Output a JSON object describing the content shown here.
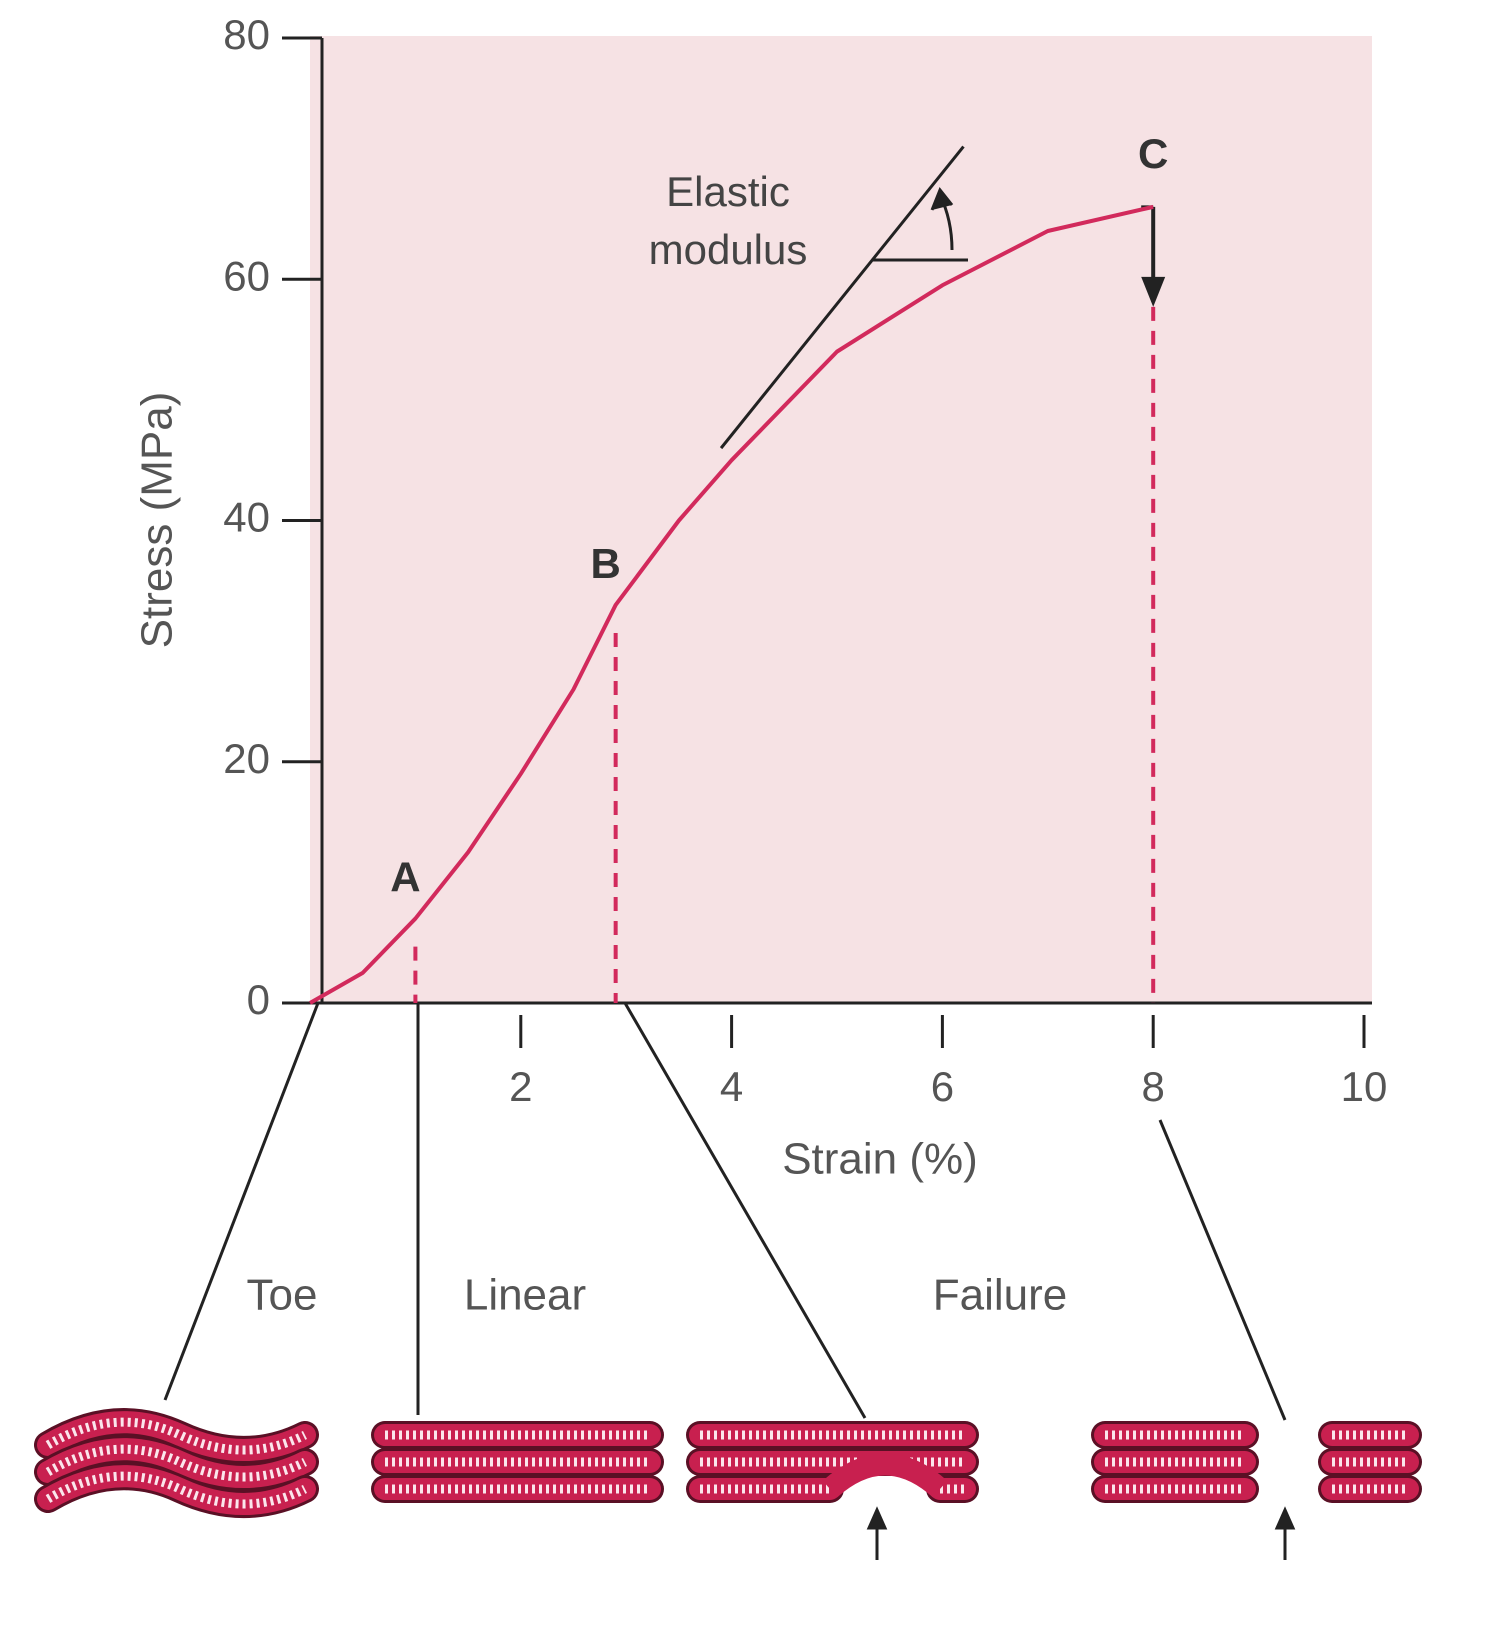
{
  "chart_data": {
    "type": "line",
    "xlabel": "Strain (%)",
    "ylabel": "Stress (MPa)",
    "xlim": [
      0,
      10
    ],
    "ylim": [
      0,
      80
    ],
    "xticks": [
      2,
      4,
      6,
      8,
      10
    ],
    "yticks": [
      0,
      20,
      40,
      60,
      80
    ],
    "background": "#f6e2e4",
    "series": [
      {
        "color": "#d22a5c",
        "x": [
          0,
          0.5,
          1,
          1.5,
          2,
          2.5,
          2.9,
          3.5,
          4,
          5,
          6,
          7,
          8
        ],
        "values": [
          0,
          2.5,
          7,
          12.5,
          19,
          26,
          33,
          40,
          45,
          54,
          59.5,
          64,
          66
        ]
      }
    ],
    "points": [
      {
        "label": "A",
        "x": 1,
        "y": 7
      },
      {
        "label": "B",
        "x": 2.9,
        "y": 33
      },
      {
        "label": "C",
        "x": 8,
        "y": 66
      }
    ],
    "tangent": {
      "x": [
        3.9,
        6.2
      ],
      "y": [
        46,
        71
      ]
    },
    "annotation_lines": [
      "Elastic",
      "modulus"
    ],
    "regions": [
      "Toe",
      "Linear",
      "Failure"
    ]
  }
}
